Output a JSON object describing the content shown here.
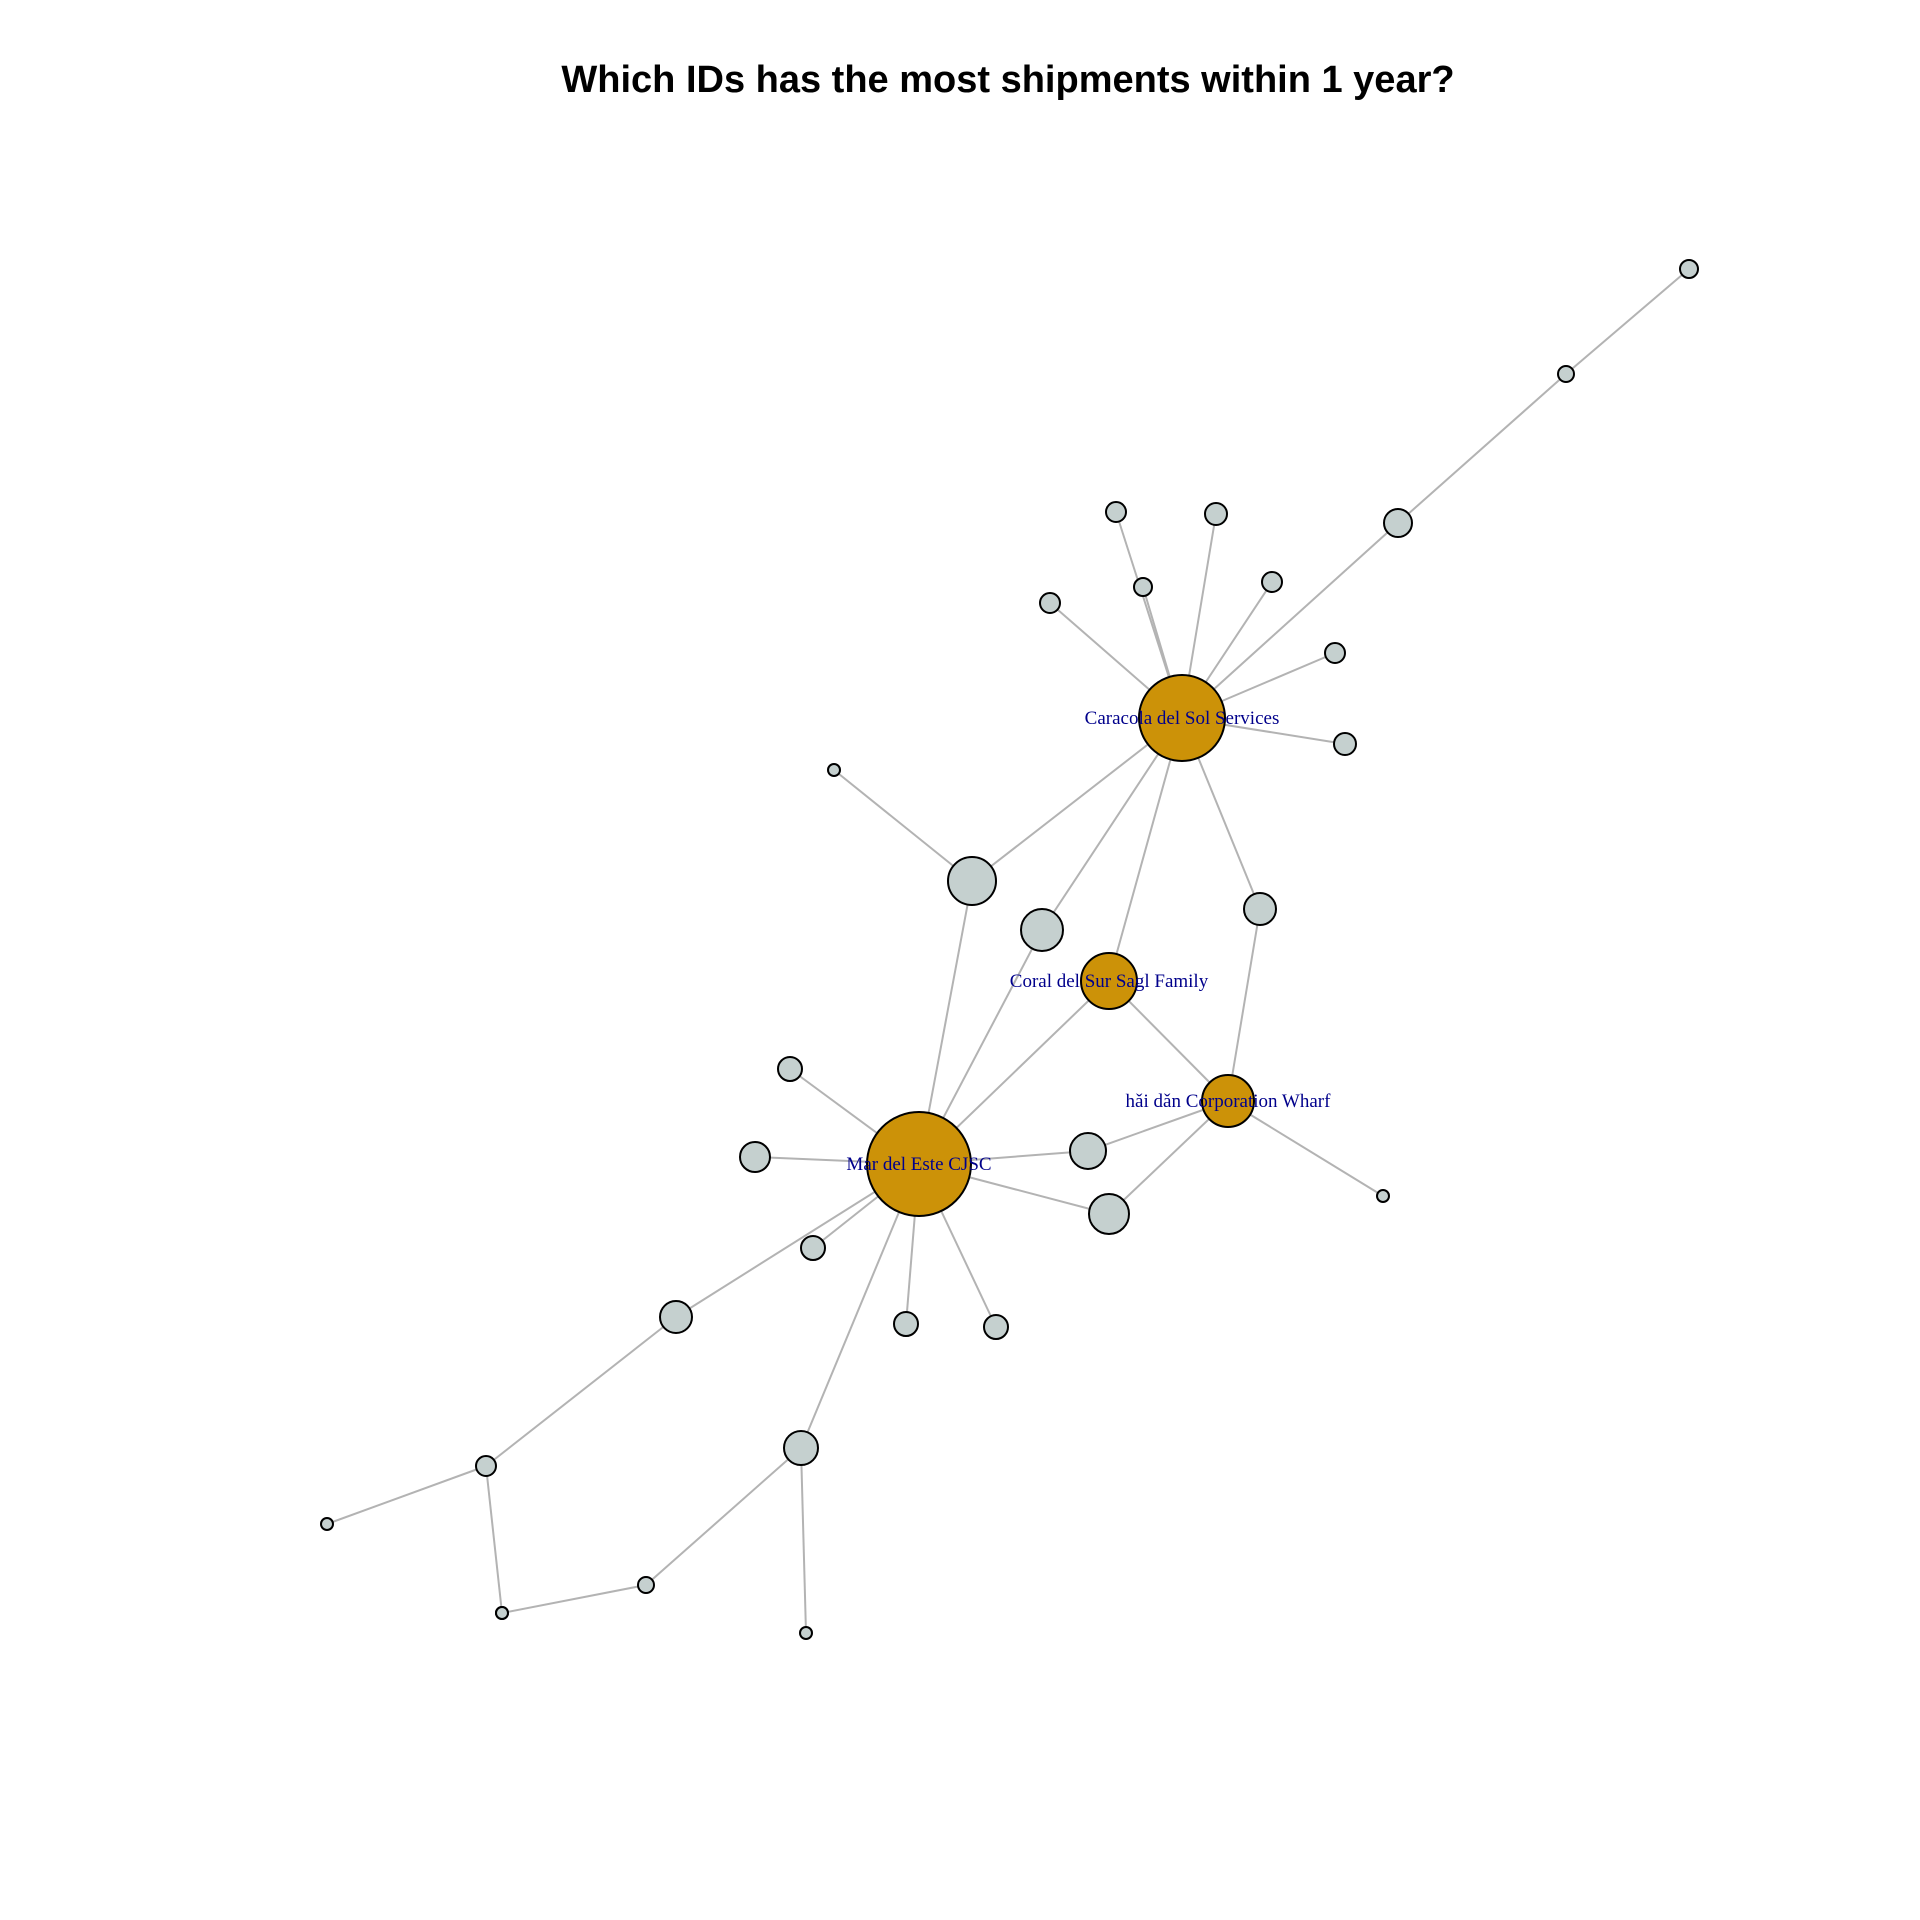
{
  "title": "Which IDs has the most shipments within 1 year?",
  "colors": {
    "highlight_node": "#CC9208",
    "regular_node": "#C5D0CF",
    "edge": "#B3B3B3",
    "label": "#00008B",
    "node_border": "#000000"
  },
  "legend": "none",
  "nodes": [
    {
      "id": "caracola",
      "label": "Caracola del Sol Services",
      "highlight": true
    },
    {
      "id": "mar-del-este",
      "label": "Mar del Este CJSC",
      "highlight": true
    },
    {
      "id": "coral-del-sur",
      "label": "Coral del Sur Sagl Family",
      "highlight": true
    },
    {
      "id": "hai-dan",
      "label": "hǎi dǎn Corporation Wharf",
      "highlight": true
    },
    {
      "id": "n1"
    },
    {
      "id": "n2"
    },
    {
      "id": "n3"
    },
    {
      "id": "n4"
    },
    {
      "id": "n5"
    },
    {
      "id": "n6"
    },
    {
      "id": "n7"
    },
    {
      "id": "n8"
    },
    {
      "id": "n9"
    },
    {
      "id": "n10"
    },
    {
      "id": "n11"
    },
    {
      "id": "n12"
    },
    {
      "id": "n13"
    },
    {
      "id": "n14"
    },
    {
      "id": "n15"
    },
    {
      "id": "n16"
    },
    {
      "id": "n17"
    },
    {
      "id": "n18"
    },
    {
      "id": "n19"
    },
    {
      "id": "n20"
    },
    {
      "id": "n21"
    },
    {
      "id": "n22"
    },
    {
      "id": "n23"
    },
    {
      "id": "n24"
    },
    {
      "id": "n25"
    },
    {
      "id": "n26"
    },
    {
      "id": "n27"
    },
    {
      "id": "n28"
    },
    {
      "id": "n29"
    }
  ],
  "edges": [
    [
      "n1",
      "n2"
    ],
    [
      "n2",
      "n3"
    ],
    [
      "n3",
      "caracola"
    ],
    [
      "n4",
      "caracola"
    ],
    [
      "n5",
      "caracola"
    ],
    [
      "n6",
      "caracola"
    ],
    [
      "n7",
      "caracola"
    ],
    [
      "n8",
      "caracola"
    ],
    [
      "n9",
      "caracola"
    ],
    [
      "n10",
      "caracola"
    ],
    [
      "caracola",
      "n12"
    ],
    [
      "n11",
      "n12"
    ],
    [
      "n12",
      "mar-del-este"
    ],
    [
      "caracola",
      "n13"
    ],
    [
      "n13",
      "mar-del-este"
    ],
    [
      "caracola",
      "coral-del-sur"
    ],
    [
      "caracola",
      "n14"
    ],
    [
      "n14",
      "hai-dan"
    ],
    [
      "coral-del-sur",
      "mar-del-este"
    ],
    [
      "coral-del-sur",
      "hai-dan"
    ],
    [
      "hai-dan",
      "n15"
    ],
    [
      "hai-dan",
      "n17"
    ],
    [
      "hai-dan",
      "n18"
    ],
    [
      "mar-del-este",
      "n16"
    ],
    [
      "mar-del-este",
      "n17"
    ],
    [
      "mar-del-este",
      "n18"
    ],
    [
      "mar-del-este",
      "n19"
    ],
    [
      "mar-del-este",
      "n20"
    ],
    [
      "mar-del-este",
      "n21"
    ],
    [
      "mar-del-este",
      "n22"
    ],
    [
      "mar-del-este",
      "n23"
    ],
    [
      "mar-del-este",
      "n24"
    ],
    [
      "mar-del-este",
      "n25"
    ],
    [
      "n24",
      "n26"
    ],
    [
      "n26",
      "n27"
    ],
    [
      "n26",
      "n28"
    ],
    [
      "n28",
      "n29"
    ],
    [
      "n29",
      "n25"
    ],
    [
      "n25",
      "n30"
    ]
  ]
}
